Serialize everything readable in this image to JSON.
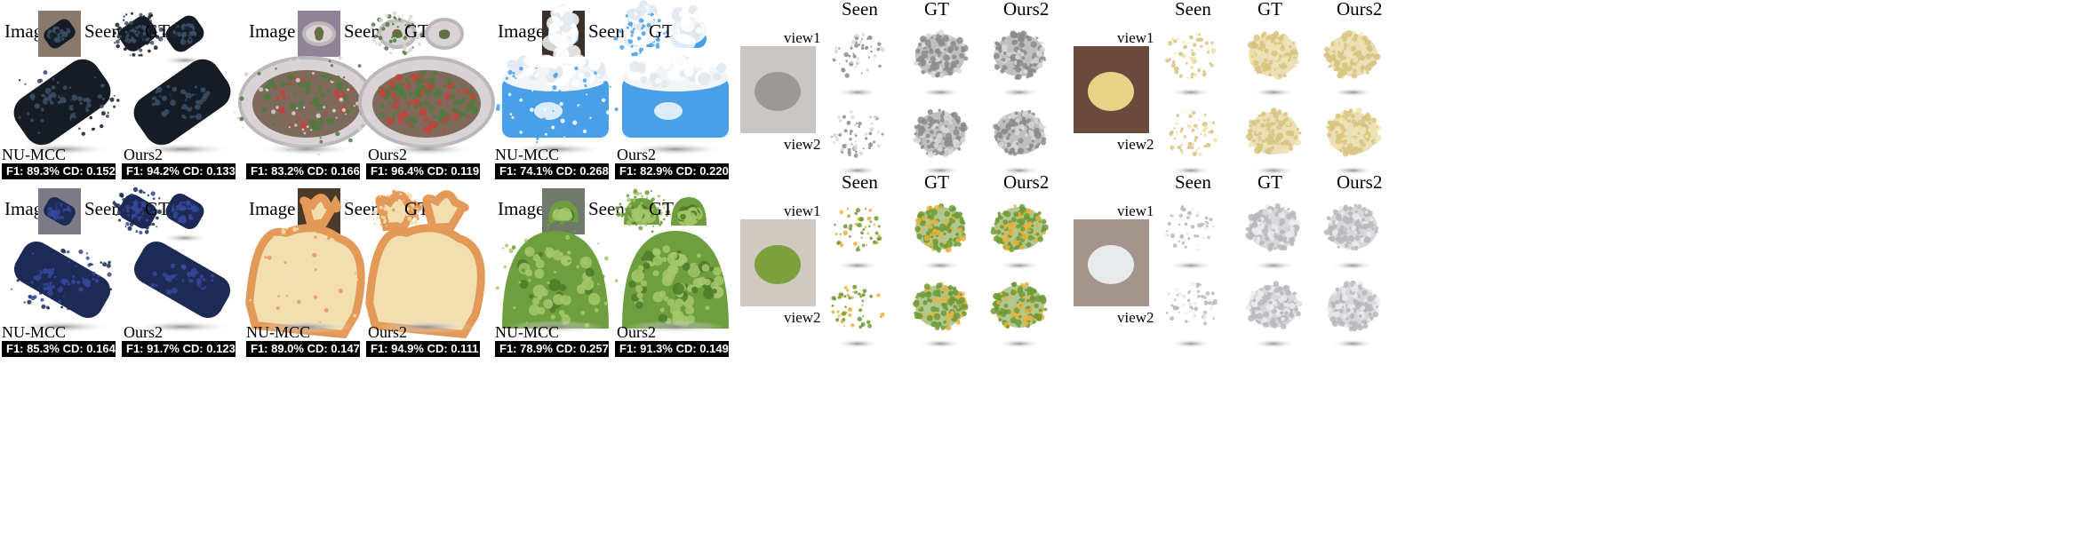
{
  "left_panels": [
    {
      "id": "glove",
      "labels": {
        "image": "Image",
        "seen": "Seen",
        "gt": "GT",
        "method_a": "NU-MCC",
        "method_b": "Ours2"
      },
      "metrics": {
        "a": "F1: 89.3%   CD: 0.152",
        "b": "F1: 94.2%   CD: 0.133"
      },
      "colors": {
        "obj": "#151c26",
        "hi": "#3b4f66",
        "thumb_bg": "#8a7a6e"
      }
    },
    {
      "id": "salad",
      "labels": {
        "image": "Image",
        "seen": "Seen",
        "gt": "GT",
        "method_a": "",
        "method_b": "Ours2"
      },
      "metrics": {
        "a": "F1: 83.2%   CD: 0.166",
        "b": "F1: 96.4%   CD: 0.119"
      },
      "colors": {
        "obj": "#d9d3d6",
        "hi": "#4f7a3e",
        "thumb_bg": "#8f8497"
      }
    },
    {
      "id": "can",
      "labels": {
        "image": "Image",
        "seen": "Seen",
        "gt": "GT",
        "method_a": "NU-MCC",
        "method_b": "Ours2"
      },
      "metrics": {
        "a": "F1: 74.1%   CD: 0.268",
        "b": "F1: 82.9%   CD: 0.220"
      },
      "colors": {
        "obj": "#4aa0e8",
        "hi": "#ffffff",
        "thumb_bg": "#3a2f2a"
      }
    },
    {
      "id": "phone",
      "labels": {
        "image": "Image",
        "seen": "Seen",
        "gt": "GT",
        "method_a": "NU-MCC",
        "method_b": "Ours2"
      },
      "metrics": {
        "a": "F1: 85.3%   CD: 0.164",
        "b": "F1: 91.7%   CD: 0.123"
      },
      "colors": {
        "obj": "#1c2a55",
        "hi": "#35489a",
        "thumb_bg": "#7d7c86"
      }
    },
    {
      "id": "bread",
      "labels": {
        "image": "Image",
        "seen": "Seen",
        "gt": "GT",
        "method_a": "NU-MCC",
        "method_b": "Ours2"
      },
      "metrics": {
        "a": "F1: 89.0%   CD: 0.147",
        "b": "F1: 94.9%   CD: 0.111"
      },
      "colors": {
        "obj": "#f3deb0",
        "hi": "#e39a58",
        "thumb_bg": "#4a3a2c"
      }
    },
    {
      "id": "custard-apple",
      "labels": {
        "image": "Image",
        "seen": "Seen",
        "gt": "GT",
        "method_a": "NU-MCC",
        "method_b": "Ours2"
      },
      "metrics": {
        "a": "F1: 78.9%   CD: 0.257",
        "b": "F1: 91.3%   CD: 0.149"
      },
      "colors": {
        "obj": "#6e9e3e",
        "hi": "#a4c86a",
        "thumb_bg": "#6f7a6a"
      }
    }
  ],
  "right_panels": [
    {
      "id": "rack",
      "headers": [
        "Seen",
        "GT",
        "Ours2"
      ],
      "views": [
        "view1",
        "view2"
      ],
      "colors": {
        "obj": "#8b8b8b",
        "hi": "#d8d8d8",
        "photo": "#c9c6c4",
        "photo_obj": "#9b9897"
      }
    },
    {
      "id": "bun",
      "headers": [
        "Seen",
        "GT",
        "Ours2"
      ],
      "views": [
        "view1",
        "view2"
      ],
      "colors": {
        "obj": "#d8c480",
        "hi": "#f0e4ad",
        "photo": "#6a4a3c",
        "photo_obj": "#e8d489"
      }
    },
    {
      "id": "mango",
      "headers": [
        "Seen",
        "GT",
        "Ours2"
      ],
      "views": [
        "view1",
        "view2"
      ],
      "colors": {
        "obj": "#6f9a36",
        "hi": "#e9b23c",
        "photo": "#cfc9c2",
        "photo_obj": "#7da03c"
      }
    },
    {
      "id": "fan",
      "headers": [
        "Seen",
        "GT",
        "Ours2"
      ],
      "views": [
        "view1",
        "view2"
      ],
      "colors": {
        "obj": "#b8b8bc",
        "hi": "#ececef",
        "photo": "#a3948c",
        "photo_obj": "#e8eaec"
      }
    }
  ]
}
